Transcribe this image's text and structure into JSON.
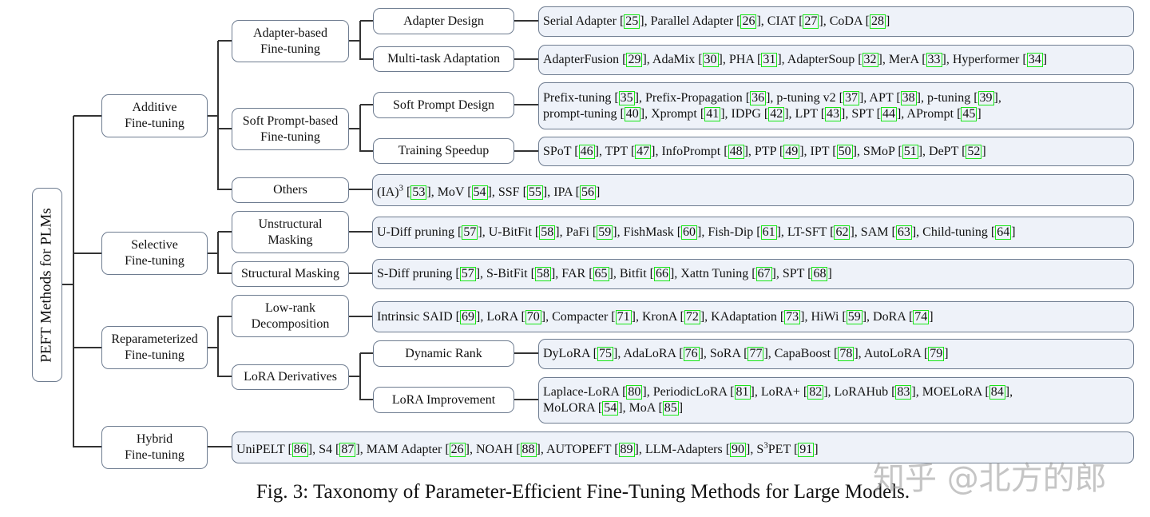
{
  "root": "PEFT Methods for PLMs",
  "level1": [
    "Additive Fine-tuning",
    "Selective Fine-tuning",
    "Reparameterized Fine-tuning",
    "Hybrid Fine-tuning"
  ],
  "level1_lines": [
    [
      "Additive",
      "Fine-tuning"
    ],
    [
      "Selective",
      "Fine-tuning"
    ],
    [
      "Reparameterized",
      "Fine-tuning"
    ],
    [
      "Hybrid",
      "Fine-tuning"
    ]
  ],
  "level2": [
    [
      "Adapter-based",
      "Fine-tuning"
    ],
    [
      "Soft Prompt-based",
      "Fine-tuning"
    ],
    [
      "Others"
    ],
    [
      "Unstructural",
      "Masking"
    ],
    [
      "Structural Masking"
    ],
    [
      "Low-rank",
      "Decomposition"
    ],
    [
      "LoRA Derivatives"
    ]
  ],
  "level3": [
    "Adapter Design",
    "Multi-task Adaptation",
    "Soft Prompt Design",
    "Training Speedup",
    "Dynamic Rank",
    "LoRA Improvement"
  ],
  "leaves": {
    "adapter_design": [
      {
        "t": "Serial Adapter ",
        "r": "25"
      },
      {
        "t": "Parallel Adapter",
        "r": "26"
      },
      {
        "t": "CIAT",
        "r": "27"
      },
      {
        "t": "CoDA",
        "r": "28"
      }
    ],
    "multitask": [
      {
        "t": "AdapterFusion",
        "r": "29"
      },
      {
        "t": "AdaMix",
        "r": "30"
      },
      {
        "t": "PHA",
        "r": "31"
      },
      {
        "t": "AdapterSoup",
        "r": "32"
      },
      {
        "t": "MerA",
        "r": "33"
      },
      {
        "t": "Hyperformer",
        "r": "34"
      }
    ],
    "soft_prompt": [
      {
        "t": "Prefix-tuning",
        "r": "35"
      },
      {
        "t": "Prefix-Propagation",
        "r": "36"
      },
      {
        "t": "p-tuning v2",
        "r": "37"
      },
      {
        "t": "APT",
        "r": "38"
      },
      {
        "t": "p-tuning",
        "r": "39",
        "br": true
      },
      {
        "t": "prompt-tuning",
        "r": "40"
      },
      {
        "t": "Xprompt",
        "r": "41"
      },
      {
        "t": "IDPG",
        "r": "42"
      },
      {
        "t": "LPT",
        "r": "43"
      },
      {
        "t": "SPT",
        "r": "44"
      },
      {
        "t": "APrompt",
        "r": "45"
      }
    ],
    "speedup": [
      {
        "t": "SPoT",
        "r": "46"
      },
      {
        "t": "TPT",
        "r": "47"
      },
      {
        "t": "InfoPrompt",
        "r": "48"
      },
      {
        "t": "PTP",
        "r": "49"
      },
      {
        "t": "IPT",
        "r": "50"
      },
      {
        "t": "SMoP",
        "r": "51"
      },
      {
        "t": "DePT",
        "r": "52"
      }
    ],
    "others": [
      {
        "t": "(IA)",
        "sup": "3",
        "r": "53"
      },
      {
        "t": "MoV",
        "r": "54"
      },
      {
        "t": "SSF",
        "r": "55"
      },
      {
        "t": "IPA",
        "r": "56"
      }
    ],
    "unstructural": [
      {
        "t": "U-Diff pruning",
        "r": "57"
      },
      {
        "t": "U-BitFit",
        "r": "58"
      },
      {
        "t": "PaFi",
        "r": "59"
      },
      {
        "t": "FishMask",
        "r": "60"
      },
      {
        "t": "Fish-Dip",
        "r": "61"
      },
      {
        "t": "LT-SFT",
        "r": "62"
      },
      {
        "t": "SAM",
        "r": "63"
      },
      {
        "t": "Child-tuning",
        "r": "64"
      }
    ],
    "structural": [
      {
        "t": "S-Diff pruning",
        "r": "57"
      },
      {
        "t": "S-BitFit",
        "r": "58"
      },
      {
        "t": "FAR",
        "r": "65"
      },
      {
        "t": "Bitfit",
        "r": "66"
      },
      {
        "t": "Xattn Tuning",
        "r": "67"
      },
      {
        "t": "SPT",
        "r": "68"
      }
    ],
    "lowrank": [
      {
        "t": "Intrinsic SAID",
        "r": "69"
      },
      {
        "t": "LoRA",
        "r": "70"
      },
      {
        "t": "Compacter",
        "r": "71"
      },
      {
        "t": "KronA",
        "r": "72"
      },
      {
        "t": "KAdaptation",
        "r": "73"
      },
      {
        "t": "HiWi",
        "r": "59"
      },
      {
        "t": "DoRA",
        "r": "74"
      }
    ],
    "dynamic_rank": [
      {
        "t": "DyLoRA",
        "r": "75"
      },
      {
        "t": "AdaLoRA",
        "r": "76"
      },
      {
        "t": "SoRA",
        "r": "77"
      },
      {
        "t": "CapaBoost",
        "r": "78"
      },
      {
        "t": "AutoLoRA",
        "r": "79"
      }
    ],
    "lora_improvement": [
      {
        "t": "Laplace-LoRA",
        "r": "80"
      },
      {
        "t": "PeriodicLoRA",
        "r": "81"
      },
      {
        "t": "LoRA+",
        "r": "82"
      },
      {
        "t": " LoRAHub",
        "r": "83"
      },
      {
        "t": "MOELoRA",
        "r": "84",
        "br": true
      },
      {
        "t": "MoLORA",
        "r": "54"
      },
      {
        "t": "MoA",
        "r": "85"
      }
    ],
    "hybrid": [
      {
        "t": "UniPELT",
        "r": "86"
      },
      {
        "t": "S4",
        "r": "87"
      },
      {
        "t": "MAM Adapter",
        "r": "26"
      },
      {
        "t": "NOAH",
        "r": "88"
      },
      {
        "t": "AUTOPEFT",
        "r": "89"
      },
      {
        "t": "LLM-Adapters",
        "r": "90"
      },
      {
        "t": "S",
        "sup": "3",
        "t2": "PET",
        "r": "91"
      }
    ]
  },
  "caption": "Fig. 3: Taxonomy of Parameter-Efficient Fine-Tuning Methods for Large Models.",
  "watermark": "知乎 @北方的郎",
  "colors": {
    "leaf_fill": "#eef2f9",
    "border": "#6e7c90",
    "citation_box": "#19e619"
  }
}
